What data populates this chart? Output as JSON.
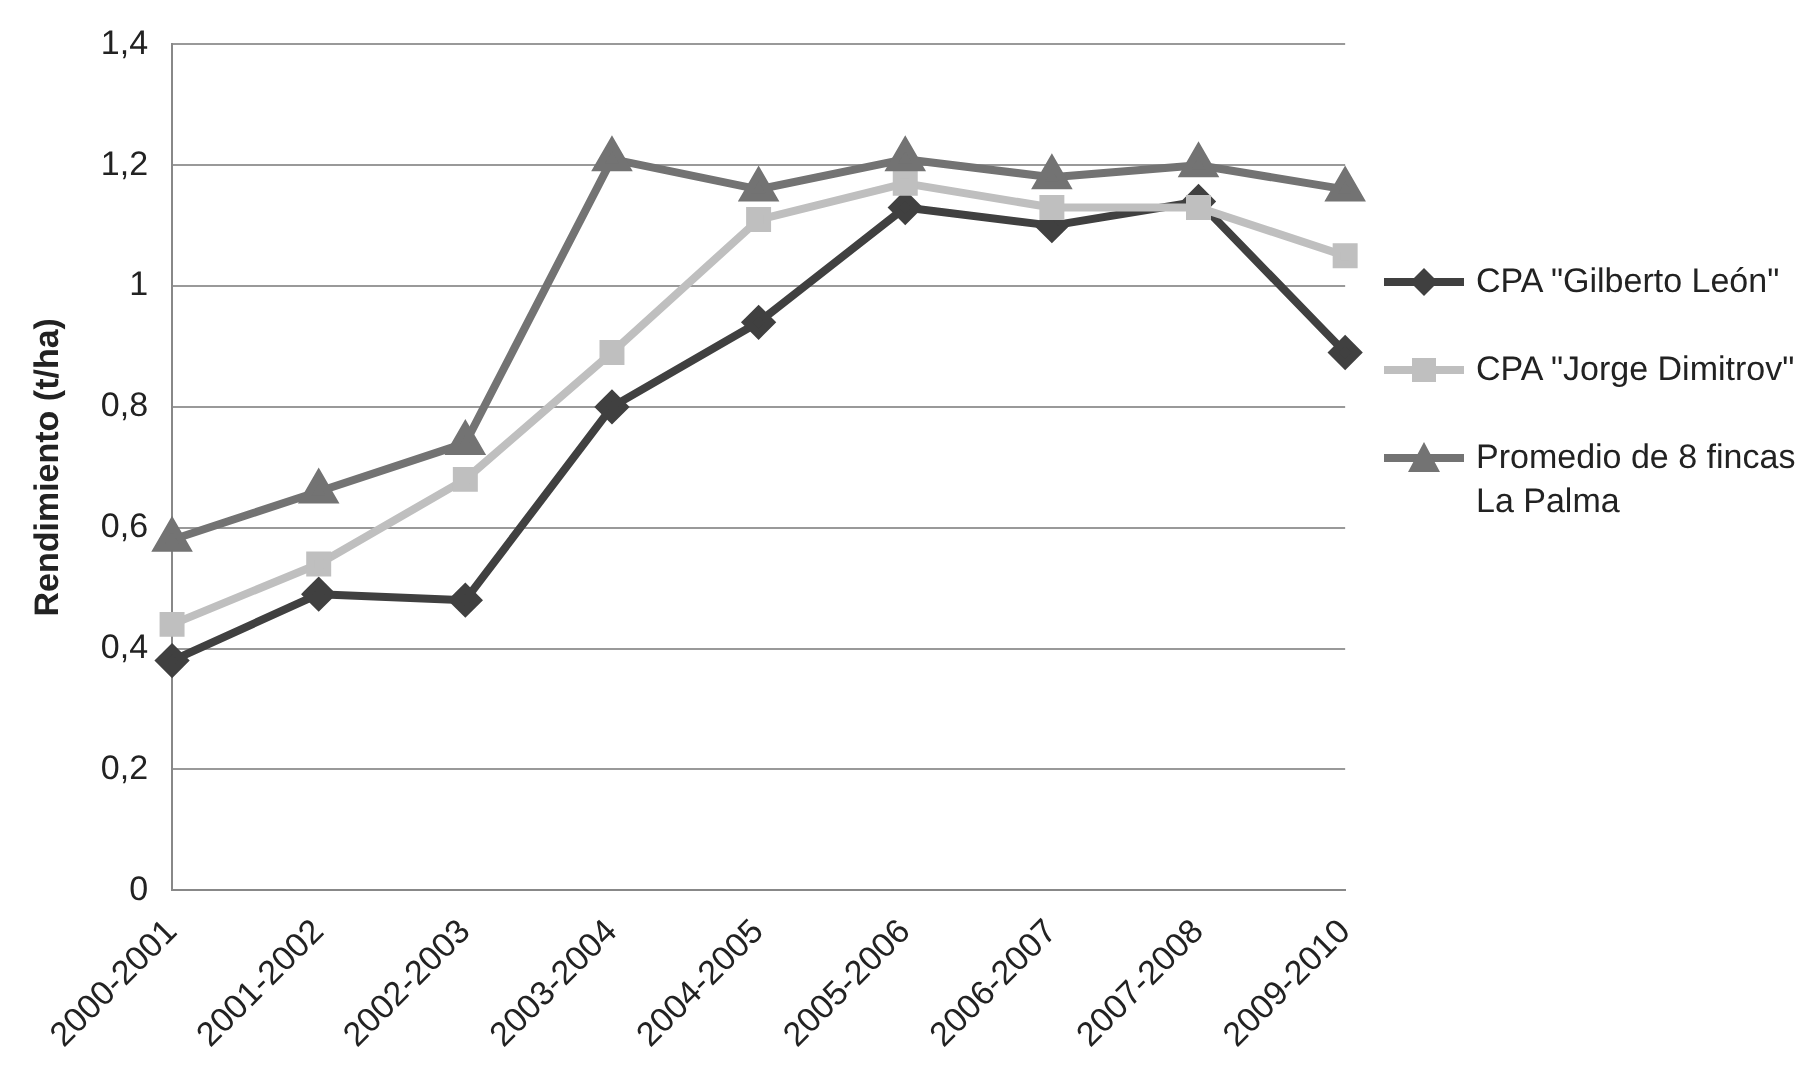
{
  "chart_data": {
    "type": "line",
    "ylabel": "Rendimiento (t/ha)",
    "categories": [
      "2000-2001",
      "2001-2002",
      "2002-2003",
      "2003-2004",
      "2004-2005",
      "2005-2006",
      "2006-2007",
      "2007-2008",
      "2009-2010"
    ],
    "series": [
      {
        "name": "CPA \"Gilberto León\"",
        "color": "#404040",
        "marker": "diamond",
        "values": [
          0.38,
          0.49,
          0.48,
          0.8,
          0.94,
          1.13,
          1.1,
          1.14,
          0.89
        ]
      },
      {
        "name": "CPA \"Jorge Dimitrov\"",
        "color": "#bfbfbf",
        "marker": "square",
        "values": [
          0.44,
          0.54,
          0.68,
          0.89,
          1.11,
          1.17,
          1.13,
          1.13,
          1.05
        ]
      },
      {
        "name": "Promedio de 8 fincas La Palma",
        "color": "#737373",
        "marker": "triangle",
        "values": [
          0.58,
          0.66,
          0.74,
          1.21,
          1.16,
          1.21,
          1.18,
          1.2,
          1.16
        ]
      }
    ],
    "ylim": [
      0,
      1.4
    ],
    "yticks": [
      0,
      {
        "value": 0.2,
        "label": "0,2"
      },
      {
        "value": 0.4,
        "label": "0,4"
      },
      {
        "value": 0.6,
        "label": "0,6"
      },
      {
        "value": 0.8,
        "label": "0,8"
      },
      1,
      {
        "value": 1.2,
        "label": "1,2"
      },
      {
        "value": 1.4,
        "label": "1,4"
      }
    ],
    "grid": "y",
    "legend": "right",
    "line_style": "solid"
  }
}
